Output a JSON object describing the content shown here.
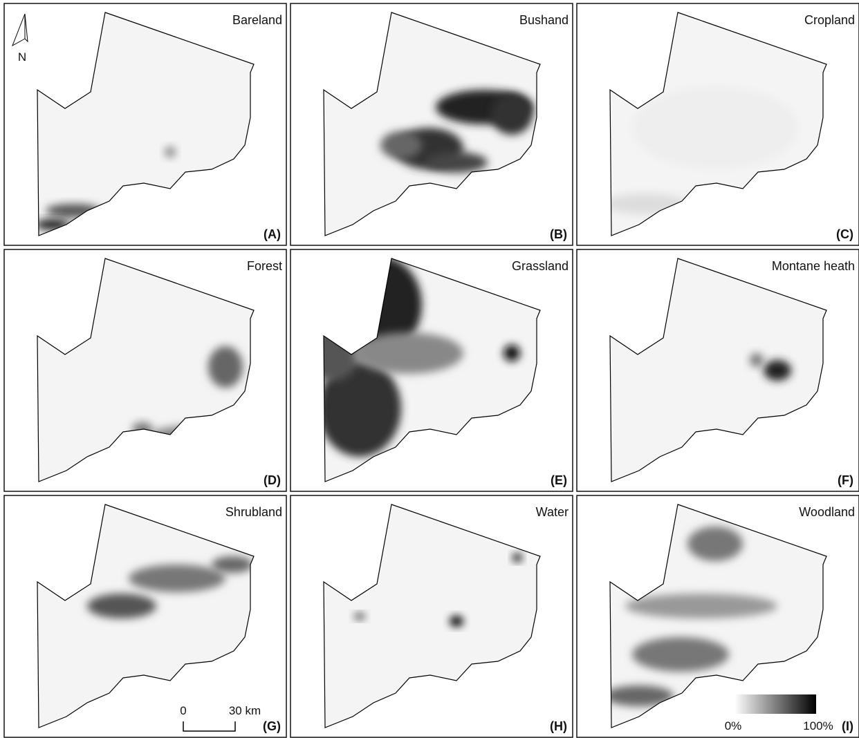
{
  "panels": [
    {
      "title": "Bareland",
      "label": "(A)"
    },
    {
      "title": "Bushand",
      "label": "(B)"
    },
    {
      "title": "Cropland",
      "label": "(C)"
    },
    {
      "title": "Forest",
      "label": "(D)"
    },
    {
      "title": "Grassland",
      "label": "(E)"
    },
    {
      "title": "Montane heath",
      "label": "(F)"
    },
    {
      "title": "Shrubland",
      "label": "(G)"
    },
    {
      "title": "Water",
      "label": "(H)"
    },
    {
      "title": "Woodland",
      "label": "(I)"
    }
  ],
  "north_arrow": {
    "label": "N"
  },
  "scale_bar": {
    "start_label": "0",
    "end_label": "30 km"
  },
  "legend": {
    "min_label": "0%",
    "max_label": "100%"
  }
}
